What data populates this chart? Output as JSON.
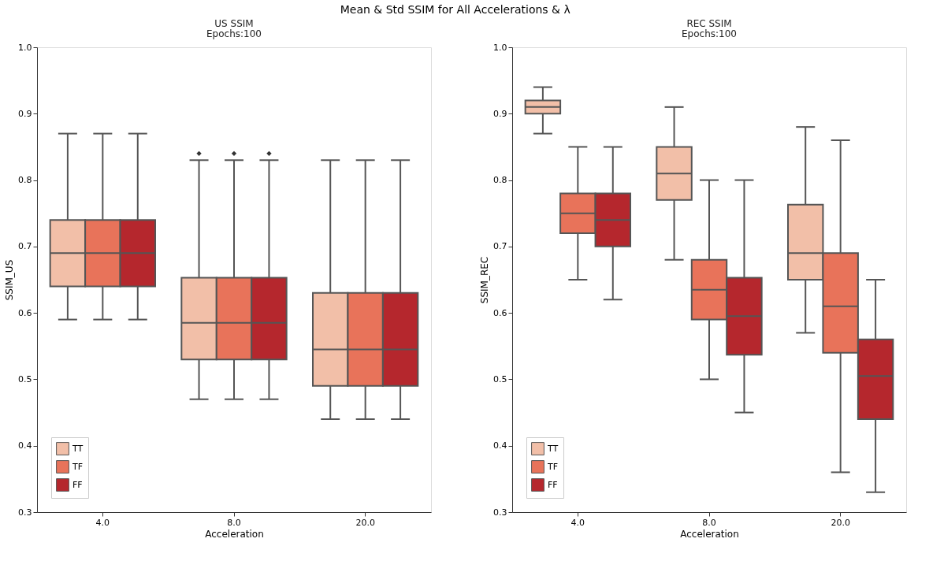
{
  "chart_data": [
    {
      "type": "box",
      "title": "US SSIM",
      "subtitle": "Epochs:100",
      "xlabel": "Acceleration",
      "ylabel": "SSIM_US",
      "annotations": [
        "Mean & Std SSIM for All Accelerations & λ"
      ],
      "categories": [
        "4.0",
        "8.0",
        "20.0"
      ],
      "ylim": [
        0.3,
        1.0
      ],
      "yticks": [
        0.3,
        0.4,
        0.5,
        0.6,
        0.7,
        0.8,
        0.9,
        {
          "value": 1.0,
          "label": "1.0"
        }
      ],
      "grid": false,
      "legend": "bottom left",
      "marker": "diamond",
      "series": [
        {
          "name": "TT",
          "color": "#f2bfa8",
          "boxes": [
            {
              "low": 0.59,
              "q1": 0.64,
              "median": 0.69,
              "q3": 0.74,
              "high": 0.87
            },
            {
              "low": 0.47,
              "q1": 0.53,
              "median": 0.585,
              "q3": 0.653,
              "high": 0.83,
              "outliers": [
                0.84
              ]
            },
            {
              "low": 0.44,
              "q1": 0.49,
              "median": 0.545,
              "q3": 0.63,
              "high": 0.83
            }
          ]
        },
        {
          "name": "TF",
          "color": "#e8735a",
          "boxes": [
            {
              "low": 0.59,
              "q1": 0.64,
              "median": 0.69,
              "q3": 0.74,
              "high": 0.87
            },
            {
              "low": 0.47,
              "q1": 0.53,
              "median": 0.585,
              "q3": 0.653,
              "high": 0.83,
              "outliers": [
                0.84
              ]
            },
            {
              "low": 0.44,
              "q1": 0.49,
              "median": 0.545,
              "q3": 0.63,
              "high": 0.83
            }
          ]
        },
        {
          "name": "FF",
          "color": "#b5272d",
          "boxes": [
            {
              "low": 0.59,
              "q1": 0.64,
              "median": 0.69,
              "q3": 0.74,
              "high": 0.87
            },
            {
              "low": 0.47,
              "q1": 0.53,
              "median": 0.585,
              "q3": 0.653,
              "high": 0.83,
              "outliers": [
                0.84
              ]
            },
            {
              "low": 0.44,
              "q1": 0.49,
              "median": 0.545,
              "q3": 0.63,
              "high": 0.83
            }
          ]
        }
      ]
    },
    {
      "type": "box",
      "title": "REC SSIM",
      "subtitle": "Epochs:100",
      "xlabel": "Acceleration",
      "ylabel": "SSIM_REC",
      "categories": [
        "4.0",
        "8.0",
        "20.0"
      ],
      "ylim": [
        0.3,
        1.0
      ],
      "yticks": [
        0.3,
        0.4,
        0.5,
        0.6,
        0.7,
        0.8,
        0.9,
        {
          "value": 1.0,
          "label": "1.0"
        }
      ],
      "grid": false,
      "legend": "bottom left",
      "series": [
        {
          "name": "TT",
          "color": "#f2bfa8",
          "boxes": [
            {
              "low": 0.87,
              "q1": 0.9,
              "median": 0.91,
              "q3": 0.92,
              "high": 0.94
            },
            {
              "low": 0.68,
              "q1": 0.77,
              "median": 0.81,
              "q3": 0.85,
              "high": 0.91
            },
            {
              "low": 0.57,
              "q1": 0.65,
              "median": 0.69,
              "q3": 0.763,
              "high": 0.88
            }
          ]
        },
        {
          "name": "TF",
          "color": "#e8735a",
          "boxes": [
            {
              "low": 0.65,
              "q1": 0.72,
              "median": 0.75,
              "q3": 0.78,
              "high": 0.85
            },
            {
              "low": 0.5,
              "q1": 0.59,
              "median": 0.635,
              "q3": 0.68,
              "high": 0.8
            },
            {
              "low": 0.36,
              "q1": 0.54,
              "median": 0.61,
              "q3": 0.69,
              "high": 0.86
            }
          ]
        },
        {
          "name": "FF",
          "color": "#b5272d",
          "boxes": [
            {
              "low": 0.62,
              "q1": 0.7,
              "median": 0.74,
              "q3": 0.78,
              "high": 0.85
            },
            {
              "low": 0.45,
              "q1": 0.537,
              "median": 0.595,
              "q3": 0.653,
              "high": 0.8
            },
            {
              "low": 0.33,
              "q1": 0.44,
              "median": 0.505,
              "q3": 0.56,
              "high": 0.65
            }
          ]
        }
      ]
    }
  ]
}
